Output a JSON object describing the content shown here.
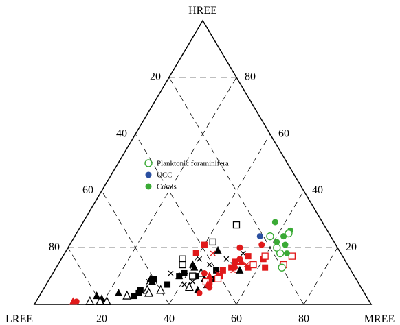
{
  "chart_data": {
    "type": "scatter",
    "subtype": "ternary",
    "vertex_labels": {
      "top": "HREE",
      "left": "LREE",
      "right": "MREE"
    },
    "tick_labels": {
      "left_edge": [
        "20",
        "40",
        "60",
        "80"
      ],
      "right_edge": [
        "80",
        "60",
        "40",
        "20"
      ],
      "bottom_edge": [
        "20",
        "40",
        "60",
        "80"
      ]
    },
    "grid": "dashed, every 20",
    "legend": {
      "position": "center-left",
      "entries": [
        {
          "label": "Planktonic foraminifera",
          "marker": "open-circle",
          "color": "#3aaa35"
        },
        {
          "label": "UCC",
          "marker": "filled-circle",
          "color": "#2a4fa0"
        },
        {
          "label": "Corals",
          "marker": "filled-circle",
          "color": "#3aaa35"
        }
      ]
    },
    "colors": {
      "black": "#000000",
      "red": "#e0191a",
      "green": "#3aaa35",
      "blue": "#2a4fa0"
    },
    "series": [
      {
        "marker": "filled-triangle",
        "color": "#000000",
        "points": [
          {
            "mree": 40,
            "hree": 14
          },
          {
            "mree": 41,
            "hree": 13
          },
          {
            "mree": 38,
            "hree": 10
          },
          {
            "mree": 30,
            "hree": 9
          },
          {
            "mree": 31,
            "hree": 8
          },
          {
            "mree": 23,
            "hree": 4
          },
          {
            "mree": 17,
            "hree": 3
          },
          {
            "mree": 19,
            "hree": 2
          },
          {
            "mree": 45,
            "hree": 19
          },
          {
            "mree": 46,
            "hree": 9
          },
          {
            "mree": 55,
            "hree": 12
          },
          {
            "mree": 46,
            "hree": 5
          }
        ]
      },
      {
        "marker": "open-triangle",
        "color": "#000000",
        "points": [
          {
            "mree": 26,
            "hree": 3
          },
          {
            "mree": 21,
            "hree": 1
          },
          {
            "mree": 19,
            "hree": 1
          },
          {
            "mree": 16,
            "hree": 1
          },
          {
            "mree": 31,
            "hree": 5
          },
          {
            "mree": 35,
            "hree": 5
          },
          {
            "mree": 43,
            "hree": 6
          },
          {
            "mree": 32,
            "hree": 4
          },
          {
            "mree": 44,
            "hree": 11
          },
          {
            "mree": 48,
            "hree": 7
          }
        ]
      },
      {
        "marker": "filled-square",
        "color": "#000000",
        "points": [
          {
            "mree": 36,
            "hree": 7
          },
          {
            "mree": 29,
            "hree": 5
          },
          {
            "mree": 29,
            "hree": 4
          },
          {
            "mree": 28,
            "hree": 3
          },
          {
            "mree": 38,
            "hree": 10
          },
          {
            "mree": 43,
            "hree": 10
          },
          {
            "mree": 48,
            "hree": 12
          },
          {
            "mree": 49,
            "hree": 9
          },
          {
            "mree": 39,
            "hree": 11
          },
          {
            "mree": 31,
            "hree": 9
          }
        ]
      },
      {
        "marker": "open-square",
        "color": "#000000",
        "points": [
          {
            "mree": 46,
            "hree": 28
          },
          {
            "mree": 42,
            "hree": 22
          },
          {
            "mree": 36,
            "hree": 16
          },
          {
            "mree": 37,
            "hree": 14
          },
          {
            "mree": 42,
            "hree": 10
          }
        ]
      },
      {
        "marker": "cross",
        "color": "#000000",
        "points": [
          {
            "mree": 49,
            "hree": 16
          },
          {
            "mree": 45,
            "hree": 14
          },
          {
            "mree": 30,
            "hree": 8
          },
          {
            "mree": 35,
            "hree": 11
          },
          {
            "mree": 41,
            "hree": 16
          },
          {
            "mree": 53,
            "hree": 18
          },
          {
            "mree": 41,
            "hree": 7
          },
          {
            "mree": 52,
            "hree": 14
          },
          {
            "mree": 43,
            "hree": 8
          }
        ]
      },
      {
        "marker": "filled-square",
        "color": "#e0191a",
        "points": [
          {
            "mree": 40,
            "hree": 21
          },
          {
            "mree": 39,
            "hree": 18
          },
          {
            "mree": 50,
            "hree": 12
          },
          {
            "mree": 55,
            "hree": 17
          },
          {
            "mree": 60,
            "hree": 16
          },
          {
            "mree": 62,
            "hree": 13
          },
          {
            "mree": 52,
            "hree": 13
          },
          {
            "mree": 50,
            "hree": 10
          },
          {
            "mree": 48,
            "hree": 8
          },
          {
            "mree": 52,
            "hree": 15
          },
          {
            "mree": 57,
            "hree": 13
          }
        ]
      },
      {
        "marker": "open-square",
        "color": "#e0191a",
        "points": [
          {
            "mree": 60,
            "hree": 17
          },
          {
            "mree": 58,
            "hree": 14
          },
          {
            "mree": 68,
            "hree": 17
          },
          {
            "mree": 67,
            "hree": 14
          },
          {
            "mree": 50,
            "hree": 9
          },
          {
            "mree": 47,
            "hree": 8
          }
        ]
      },
      {
        "marker": "filled-circle",
        "color": "#e0191a",
        "points": [
          {
            "mree": 51,
            "hree": 20
          },
          {
            "mree": 57,
            "hree": 21
          },
          {
            "mree": 53,
            "hree": 16
          },
          {
            "mree": 53,
            "hree": 13
          },
          {
            "mree": 45,
            "hree": 11
          },
          {
            "mree": 49,
            "hree": 6
          },
          {
            "mree": 47,
            "hree": 4
          },
          {
            "mree": 12,
            "hree": 1
          }
        ]
      },
      {
        "marker": "filled-triangle",
        "color": "#e0191a",
        "points": [
          {
            "mree": 11,
            "hree": 1
          },
          {
            "mree": 48,
            "hree": 7
          },
          {
            "mree": 47,
            "hree": 10
          },
          {
            "mree": 54,
            "hree": 15
          }
        ]
      },
      {
        "marker": "cross",
        "color": "#e0191a",
        "points": [
          {
            "mree": 44,
            "hree": 18
          },
          {
            "mree": 49,
            "hree": 11
          },
          {
            "mree": 53,
            "hree": 12
          },
          {
            "mree": 56,
            "hree": 14
          }
        ]
      },
      {
        "marker": "filled-circle",
        "color": "#3aaa35",
        "points": [
          {
            "mree": 57,
            "hree": 29
          },
          {
            "mree": 63,
            "hree": 26
          },
          {
            "mree": 61,
            "hree": 22
          },
          {
            "mree": 62,
            "hree": 24
          },
          {
            "mree": 64,
            "hree": 21
          },
          {
            "mree": 66,
            "hree": 18
          }
        ]
      },
      {
        "marker": "open-circle",
        "color": "#3aaa35",
        "points": [
          {
            "mree": 58,
            "hree": 24
          },
          {
            "mree": 63,
            "hree": 25
          },
          {
            "mree": 62,
            "hree": 20
          },
          {
            "mree": 64,
            "hree": 18
          },
          {
            "mree": 67,
            "hree": 13
          }
        ]
      },
      {
        "marker": "filled-circle",
        "color": "#2a4fa0",
        "points": [
          {
            "mree": 55,
            "hree": 24
          }
        ]
      }
    ]
  }
}
